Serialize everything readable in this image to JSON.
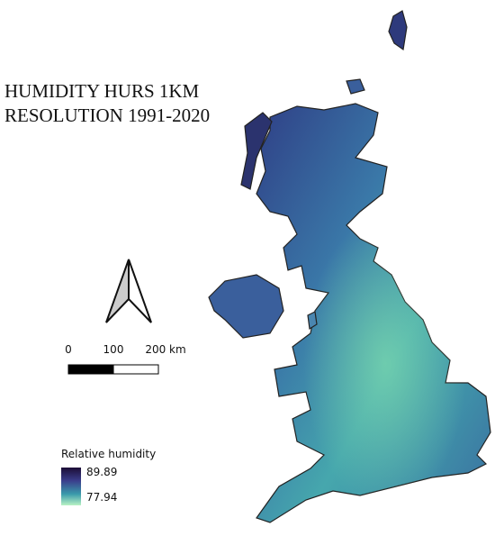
{
  "title": [
    "HUMIDITY HURS 1KM",
    "RESOLUTION 1991-2020"
  ],
  "scale_bar": {
    "labels": [
      "0",
      "100",
      "200 km"
    ]
  },
  "legend": {
    "title": "Relative humidity",
    "labels": [
      "89.89",
      "77.94"
    ]
  }
}
